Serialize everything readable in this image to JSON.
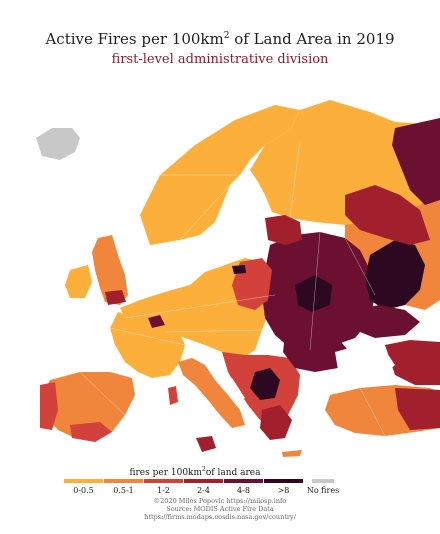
{
  "title": {
    "text": "Active Fires per 100km",
    "sup": "2",
    "tail": "of Land Area in 2019"
  },
  "subtitle": "first-level administrative division",
  "legend": {
    "title_text": "fires per 100km",
    "title_sup": "2",
    "title_tail": "of land area",
    "items": [
      {
        "label": "0-0.5",
        "color": "#fcb03b"
      },
      {
        "label": "0.5-1",
        "color": "#f0853c"
      },
      {
        "label": "1-2",
        "color": "#d2413a"
      },
      {
        "label": "2-4",
        "color": "#a2202e"
      },
      {
        "label": "4-8",
        "color": "#6b1030"
      },
      {
        "label": ">8",
        "color": "#2c0920"
      },
      {
        "label": "No fires",
        "color": "#c8c8c8"
      }
    ]
  },
  "credits": [
    "©2020 Milos Popovic https://milosp.info",
    "Source: MODIS Active Fire Data",
    "https://firms.modaps.eosdis.nasa.gov/country/"
  ]
}
